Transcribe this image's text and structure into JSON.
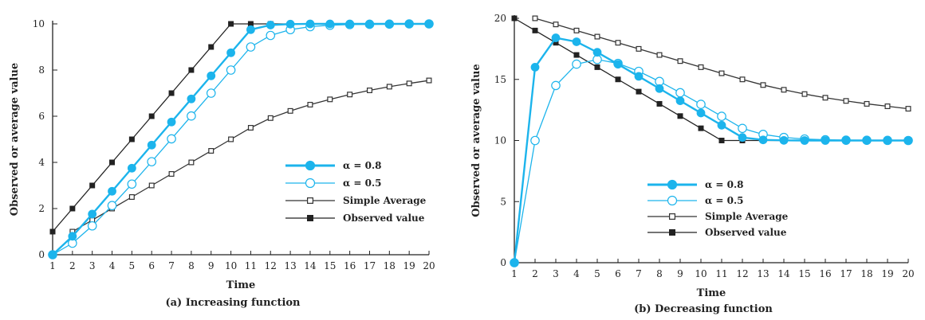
{
  "colors": {
    "alpha08": "#1cb4ec",
    "alpha05": "#1cb4ec",
    "simple": "#333333",
    "observed": "#222222"
  },
  "chart_data": [
    {
      "type": "line",
      "caption": "(a) Increasing function",
      "xlabel": "Time",
      "ylabel": "Observed or average value",
      "x": [
        1,
        2,
        3,
        4,
        5,
        6,
        7,
        8,
        9,
        10,
        11,
        12,
        13,
        14,
        15,
        16,
        17,
        18,
        19,
        20
      ],
      "xlim": [
        1,
        20
      ],
      "ylim": [
        0,
        10
      ],
      "yticks": [
        0,
        2,
        4,
        6,
        8,
        10
      ],
      "grid": false,
      "legend_position": "center-right",
      "series": [
        {
          "name": "α = 0.8",
          "marker": "filled-circle",
          "color": "alpha08",
          "values": [
            0,
            0.8,
            1.76,
            2.75,
            3.75,
            4.75,
            5.75,
            6.75,
            7.75,
            8.75,
            9.75,
            9.95,
            9.99,
            10,
            10,
            10,
            10,
            10,
            10,
            10
          ]
        },
        {
          "name": "α = 0.5",
          "marker": "open-circle",
          "color": "alpha05",
          "values": [
            0,
            0.5,
            1.25,
            2.13,
            3.06,
            4.03,
            5.02,
            6.01,
            7.0,
            8.0,
            9.0,
            9.5,
            9.75,
            9.88,
            9.94,
            9.97,
            9.98,
            9.99,
            10,
            10
          ]
        },
        {
          "name": "Simple Average",
          "marker": "open-square",
          "color": "simple",
          "values": [
            null,
            1,
            1.5,
            2,
            2.5,
            3,
            3.5,
            4,
            4.5,
            5,
            5.5,
            5.92,
            6.23,
            6.5,
            6.73,
            6.94,
            7.12,
            7.28,
            7.42,
            7.55
          ]
        },
        {
          "name": "Observed value",
          "marker": "filled-square",
          "color": "observed",
          "values": [
            1,
            2,
            3,
            4,
            5,
            6,
            7,
            8,
            9,
            10,
            10,
            10,
            10,
            10,
            10,
            10,
            10,
            10,
            10,
            10
          ]
        }
      ]
    },
    {
      "type": "line",
      "caption": "(b) Decreasing function",
      "xlabel": "Time",
      "ylabel": "Observed or average value",
      "x": [
        1,
        2,
        3,
        4,
        5,
        6,
        7,
        8,
        9,
        10,
        11,
        12,
        13,
        14,
        15,
        16,
        17,
        18,
        19,
        20
      ],
      "xlim": [
        1,
        20
      ],
      "ylim": [
        0,
        20
      ],
      "yticks": [
        0,
        5,
        10,
        15,
        20
      ],
      "grid": false,
      "legend_position": "bottom-center",
      "series": [
        {
          "name": "α = 0.8",
          "marker": "filled-circle",
          "color": "alpha08",
          "values": [
            0,
            16,
            18.4,
            18.08,
            17.22,
            16.24,
            15.25,
            14.25,
            13.25,
            12.25,
            11.25,
            10.25,
            10.05,
            10.01,
            10,
            10,
            10,
            10,
            10,
            10
          ]
        },
        {
          "name": "α = 0.5",
          "marker": "open-circle",
          "color": "alpha05",
          "values": [
            0,
            10,
            14.5,
            16.25,
            16.63,
            16.31,
            15.66,
            14.83,
            13.91,
            12.96,
            11.98,
            10.99,
            10.5,
            10.25,
            10.12,
            10.06,
            10.03,
            10.02,
            10.01,
            10
          ]
        },
        {
          "name": "Simple Average",
          "marker": "open-square",
          "color": "simple",
          "values": [
            null,
            20,
            19.5,
            19,
            18.5,
            18,
            17.5,
            17,
            16.5,
            16,
            15.5,
            15,
            14.54,
            14.15,
            13.8,
            13.5,
            13.24,
            13.0,
            12.8,
            12.6
          ]
        },
        {
          "name": "Observed value",
          "marker": "filled-square",
          "color": "observed",
          "values": [
            20,
            19,
            18,
            17,
            16,
            15,
            14,
            13,
            12,
            11,
            10,
            10,
            10,
            10,
            10,
            10,
            10,
            10,
            10,
            10
          ]
        }
      ]
    }
  ]
}
